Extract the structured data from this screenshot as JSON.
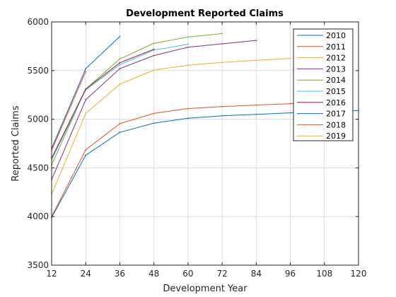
{
  "chart_data": {
    "type": "line",
    "title": "Development Reported Claims",
    "xlabel": "Development Year",
    "ylabel": "Reported Claims",
    "xlim": [
      12,
      120
    ],
    "ylim": [
      3500,
      6000
    ],
    "xticks": [
      12,
      24,
      36,
      48,
      60,
      72,
      84,
      96,
      108,
      120
    ],
    "yticks": [
      3500,
      4000,
      4500,
      5000,
      5500,
      6000
    ],
    "grid": true,
    "legend_position": "top-right",
    "series": [
      {
        "name": "2010",
        "color": "#0072BD",
        "x": [
          12,
          24,
          36,
          48,
          60,
          72,
          84,
          96,
          108,
          120
        ],
        "y": [
          3990,
          4630,
          4865,
          4960,
          5010,
          5035,
          5050,
          5065,
          5080,
          5090
        ]
      },
      {
        "name": "2011",
        "color": "#D95319",
        "x": [
          12,
          24,
          36,
          48,
          60,
          72,
          84,
          96,
          108
        ],
        "y": [
          4000,
          4685,
          4955,
          5060,
          5110,
          5130,
          5145,
          5160,
          5180
        ]
      },
      {
        "name": "2012",
        "color": "#EDB120",
        "x": [
          12,
          24,
          36,
          48,
          60,
          72,
          84,
          96
        ],
        "y": [
          4230,
          5060,
          5360,
          5505,
          5555,
          5585,
          5605,
          5625
        ]
      },
      {
        "name": "2013",
        "color": "#7E2F8E",
        "x": [
          12,
          24,
          36,
          48,
          60,
          72,
          84
        ],
        "y": [
          4380,
          5200,
          5520,
          5655,
          5740,
          5775,
          5810
        ]
      },
      {
        "name": "2014",
        "color": "#77AC30",
        "x": [
          12,
          24,
          36,
          48,
          60,
          72
        ],
        "y": [
          4530,
          5310,
          5620,
          5780,
          5845,
          5880
        ]
      },
      {
        "name": "2015",
        "color": "#4DBEEE",
        "x": [
          12,
          24,
          36,
          48,
          60
        ],
        "y": [
          4580,
          5300,
          5560,
          5710,
          5770
        ]
      },
      {
        "name": "2016",
        "color": "#A2142F",
        "x": [
          12,
          24,
          36,
          48
        ],
        "y": [
          4600,
          5310,
          5580,
          5720
        ]
      },
      {
        "name": "2017",
        "color": "#0072BD",
        "x": [
          12,
          24,
          36
        ],
        "y": [
          4700,
          5520,
          5850
        ]
      },
      {
        "name": "2018",
        "color": "#D95319",
        "x": [
          12,
          24
        ],
        "y": [
          4680,
          5490
        ]
      },
      {
        "name": "2019",
        "color": "#EDB120",
        "x": [
          12
        ],
        "y": [
          4540
        ]
      }
    ]
  }
}
